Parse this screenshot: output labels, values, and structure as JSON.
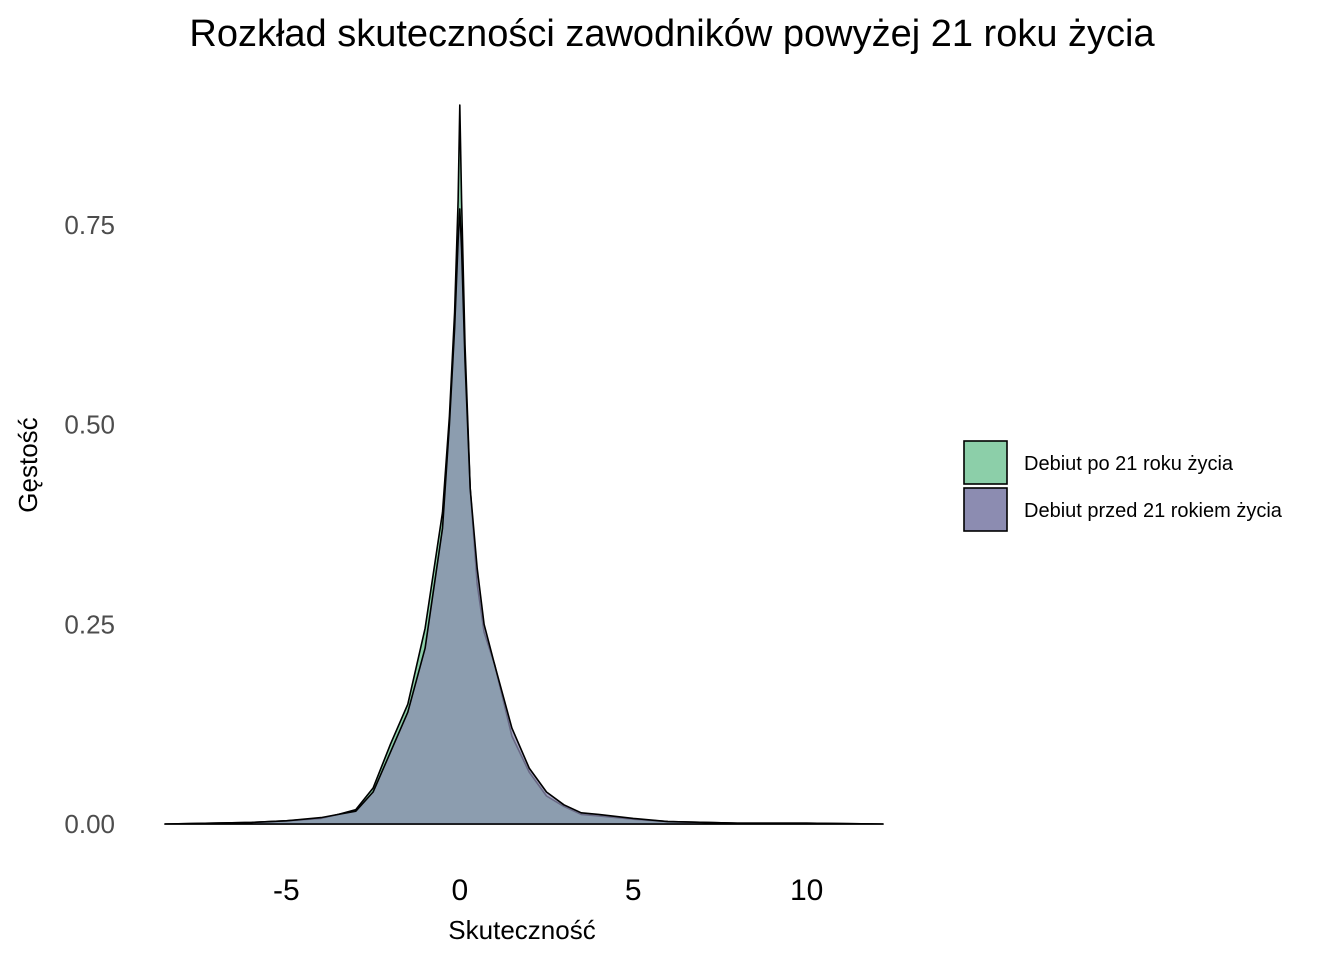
{
  "chart_data": {
    "type": "area",
    "title": "Rozkład skuteczności zawodników powyżej 21 roku życia",
    "xlabel": "Skuteczność",
    "ylabel": "Gęstość",
    "xlim": [
      -8.5,
      12.2
    ],
    "ylim": [
      0,
      0.9
    ],
    "x_ticks": [
      -5,
      0,
      5,
      10
    ],
    "y_ticks": [
      0,
      0.25,
      0.5,
      0.75
    ],
    "y_tick_labels": [
      "0.00",
      "0.25",
      "0.50",
      "0.75"
    ],
    "grid": false,
    "legend_position": "right",
    "series": [
      {
        "name": "Debiut po 21 roku życia",
        "color": "#8ccfa9",
        "x": [
          -8.5,
          -6,
          -5,
          -4,
          -3.5,
          -3,
          -2.5,
          -2,
          -1.5,
          -1,
          -0.5,
          -0.3,
          -0.15,
          -0.05,
          0,
          0.05,
          0.15,
          0.3,
          0.5,
          0.7,
          1,
          1.5,
          2,
          2.5,
          3,
          3.5,
          4,
          5,
          6,
          8,
          10,
          12.2
        ],
        "y": [
          0,
          0.002,
          0.004,
          0.007,
          0.012,
          0.018,
          0.045,
          0.1,
          0.15,
          0.245,
          0.39,
          0.51,
          0.64,
          0.78,
          0.9,
          0.78,
          0.6,
          0.42,
          0.3,
          0.24,
          0.2,
          0.11,
          0.065,
          0.035,
          0.022,
          0.012,
          0.01,
          0.006,
          0.003,
          0.001,
          0.001,
          0
        ]
      },
      {
        "name": "Debiut przed 21 rokiem życia",
        "color": "#8c8cb1",
        "x": [
          -8.5,
          -6,
          -5,
          -4,
          -3.5,
          -3,
          -2.5,
          -2,
          -1.5,
          -1,
          -0.5,
          -0.3,
          -0.15,
          -0.05,
          0,
          0.05,
          0.15,
          0.3,
          0.5,
          0.7,
          1,
          1.5,
          2,
          2.5,
          3,
          3.5,
          4,
          5,
          6,
          8,
          10,
          12.2
        ],
        "y": [
          0,
          0.002,
          0.004,
          0.008,
          0.012,
          0.016,
          0.04,
          0.09,
          0.14,
          0.22,
          0.37,
          0.5,
          0.62,
          0.73,
          0.77,
          0.72,
          0.58,
          0.42,
          0.32,
          0.25,
          0.2,
          0.12,
          0.07,
          0.04,
          0.024,
          0.014,
          0.012,
          0.007,
          0.003,
          0.001,
          0.001,
          0
        ]
      }
    ]
  }
}
